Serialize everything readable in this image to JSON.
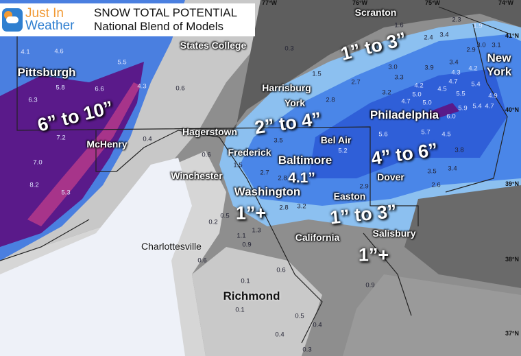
{
  "header": {
    "logo": {
      "line1": "Just In",
      "line2": "Weather"
    },
    "title": "SNOW TOTAL POTENTIAL",
    "subtitle": "National Blend of Models"
  },
  "colors": {
    "purple": "#5a1a8a",
    "pink": "#e0407a",
    "blue_dark": "#2f5fd8",
    "blue": "#4a86e8",
    "blue_light": "#8cc0f0",
    "gray_dark": "#5a5a5a",
    "gray": "#8e8e8e",
    "gray_light": "#c8c8c8",
    "white": "#eef1f8"
  },
  "coords": [
    "77°W",
    "76°W",
    "75°W",
    "74°W",
    "41°N",
    "40°N",
    "39°N",
    "38°N",
    "37°N"
  ],
  "cities": [
    "Scranton",
    "States College",
    "Harrisburg",
    "York",
    "Pittsburgh",
    "McHenry",
    "Hagerstown",
    "Frederick",
    "Winchester",
    "Washington",
    "Bel Air",
    "Baltimore",
    "Dover",
    "Easton",
    "Salisbury",
    "California",
    "Philadelphia",
    "New York",
    "Charlottesville",
    "Richmond"
  ],
  "ranges": [
    "6” to 10”",
    "1” to 3”",
    "2” to 4”",
    "4” to 6”",
    "1”+",
    "1” to 3”",
    "1”+",
    "4.1”"
  ],
  "amounts": [
    "4.1",
    "4.6",
    "5.5",
    "5.8",
    "6.6",
    "6.3",
    "4.3",
    "7.2",
    "7.0",
    "8.2",
    "5.3",
    "0.6",
    "0.4",
    "0.6",
    "0.3",
    "1.6",
    "2.3",
    "1.9",
    "3.4",
    "2.4",
    "3.0",
    "3.1",
    "2.9",
    "3.0",
    "3.4",
    "3.9",
    "4.3",
    "4.7",
    "4.2",
    "3.3",
    "2.7",
    "1.5",
    "4.2",
    "3.2",
    "5.0",
    "4.7",
    "5.0",
    "4.5",
    "5.5",
    "5.4",
    "4.9",
    "5.9",
    "6.0",
    "5.4",
    "4.7",
    "2.8",
    "3.5",
    "5.2",
    "2.7",
    "2.8",
    "3.2",
    "2.8",
    "2.9",
    "5.6",
    "5.7",
    "4.5",
    "3.8",
    "3.5",
    "3.4",
    "2.6",
    "1.5",
    "0.5",
    "0.2",
    "1.3",
    "1.1",
    "0.9",
    "0.6",
    "0.6",
    "0.1",
    "0.1",
    "0.9",
    "0.5",
    "0.4",
    "0.4",
    "0.3"
  ]
}
